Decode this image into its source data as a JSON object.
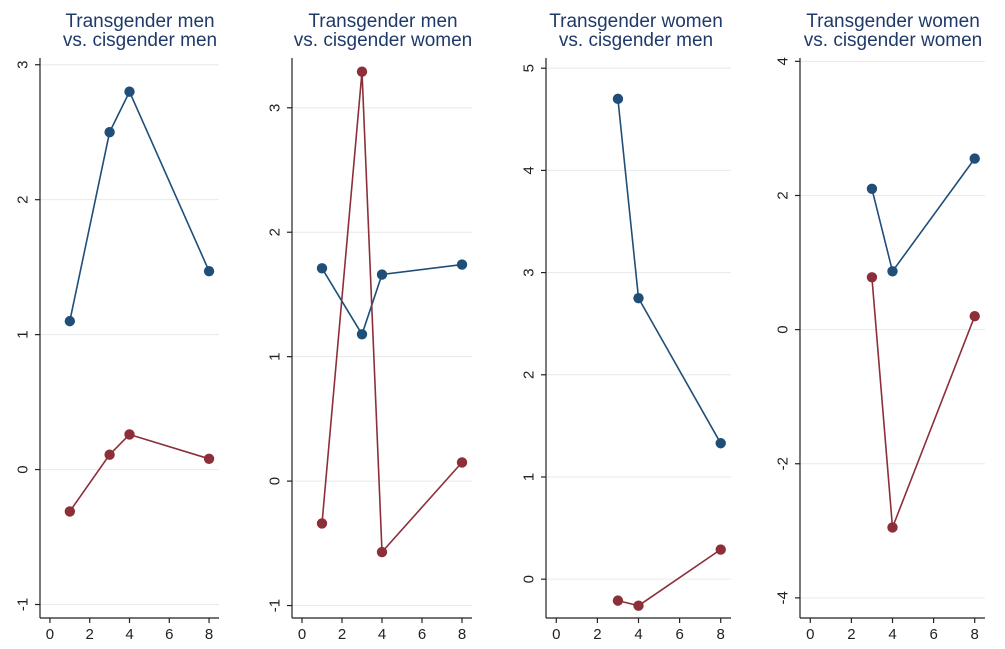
{
  "colors": {
    "series_a": "#1f4e79",
    "series_b": "#8c2f39",
    "title": "#1f3a6a",
    "grid": "#e6eaee"
  },
  "chart_data": [
    {
      "type": "line",
      "title_lines": [
        "Transgender men",
        "vs. cisgender men"
      ],
      "xlabel": "",
      "ylabel": "",
      "xlim": [
        -0.5,
        8.5
      ],
      "ylim": [
        -1.1,
        3.05
      ],
      "xticks": [
        0,
        2,
        4,
        6,
        8
      ],
      "yticks": [
        -1,
        0,
        1,
        2,
        3
      ],
      "grid": true,
      "series": [
        {
          "x": [
            1,
            3,
            4,
            8
          ],
          "y": [
            1.1,
            2.5,
            2.8,
            1.47
          ]
        },
        {
          "x": [
            1,
            3,
            4,
            8
          ],
          "y": [
            -0.31,
            0.11,
            0.26,
            0.08
          ]
        }
      ]
    },
    {
      "type": "line",
      "title_lines": [
        "Transgender men",
        "vs. cisgender women"
      ],
      "xlabel": "",
      "ylabel": "",
      "xlim": [
        -0.5,
        8.5
      ],
      "ylim": [
        -1.1,
        3.4
      ],
      "xticks": [
        0,
        2,
        4,
        6,
        8
      ],
      "yticks": [
        -1,
        0,
        1,
        2,
        3
      ],
      "grid": true,
      "series": [
        {
          "x": [
            1,
            3,
            4,
            8
          ],
          "y": [
            1.71,
            1.18,
            1.66,
            1.74
          ]
        },
        {
          "x": [
            1,
            3,
            4,
            8
          ],
          "y": [
            -0.34,
            3.29,
            -0.57,
            0.15
          ]
        }
      ]
    },
    {
      "type": "line",
      "title_lines": [
        "Transgender women",
        "vs. cisgender men"
      ],
      "xlabel": "",
      "ylabel": "",
      "xlim": [
        -0.5,
        8.5
      ],
      "ylim": [
        -0.38,
        5.1
      ],
      "xticks": [
        0,
        2,
        4,
        6,
        8
      ],
      "yticks": [
        0,
        1,
        2,
        3,
        4,
        5
      ],
      "grid": true,
      "series": [
        {
          "x": [
            3,
            4,
            8
          ],
          "y": [
            4.7,
            2.75,
            1.33
          ]
        },
        {
          "x": [
            3,
            4,
            8
          ],
          "y": [
            -0.21,
            -0.26,
            0.29
          ]
        }
      ]
    },
    {
      "type": "line",
      "title_lines": [
        "Transgender women",
        "vs. cisgender women"
      ],
      "xlabel": "",
      "ylabel": "",
      "xlim": [
        -0.5,
        8.5
      ],
      "ylim": [
        -4.3,
        4.05
      ],
      "xticks": [
        0,
        2,
        4,
        6,
        8
      ],
      "yticks": [
        -4,
        -2,
        0,
        2,
        4
      ],
      "grid": true,
      "series": [
        {
          "x": [
            3,
            4,
            8
          ],
          "y": [
            2.1,
            0.87,
            2.55
          ]
        },
        {
          "x": [
            3,
            4,
            8
          ],
          "y": [
            0.78,
            -2.95,
            0.2
          ]
        }
      ]
    }
  ]
}
